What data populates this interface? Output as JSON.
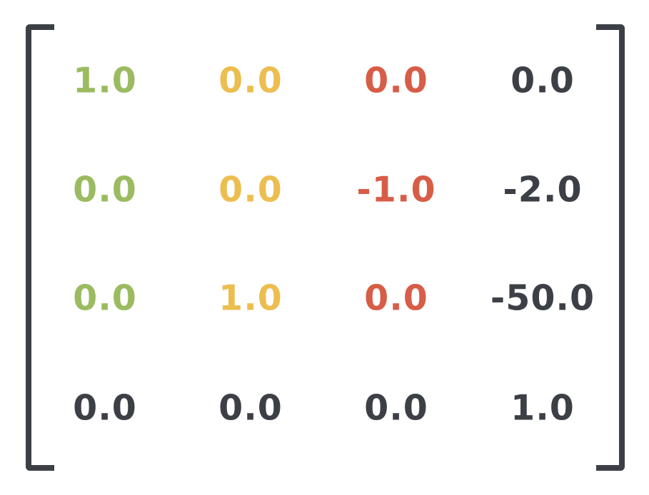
{
  "colors": {
    "x_axis": "#9bbb61",
    "y_axis": "#ecbe50",
    "z_axis": "#d75d47",
    "translation": "#3c4046",
    "bracket": "#3c4046"
  },
  "matrix": {
    "rows": [
      [
        "1.0",
        "0.0",
        "0.0",
        "0.0"
      ],
      [
        "0.0",
        "0.0",
        "-1.0",
        "-2.0"
      ],
      [
        "0.0",
        "1.0",
        "0.0",
        "-50.0"
      ],
      [
        "0.0",
        "0.0",
        "0.0",
        "1.0"
      ]
    ]
  }
}
